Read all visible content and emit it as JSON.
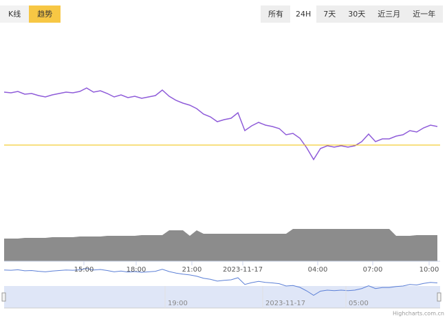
{
  "tabs": [
    "K线",
    "趋势"
  ],
  "ranges": [
    "所有",
    "24H",
    "7天",
    "30天",
    "近三月",
    "近一年"
  ],
  "chart_data": {
    "type": "line",
    "xlim": [
      0,
      63
    ],
    "xticks": [
      {
        "value": 11.6,
        "label": "15:00"
      },
      {
        "value": 19.2,
        "label": "18:00"
      },
      {
        "value": 27.3,
        "label": "21:00"
      },
      {
        "value": 34.7,
        "label": "2023-11-17"
      },
      {
        "value": 45.6,
        "label": "04:00"
      },
      {
        "value": 53.6,
        "label": "07:00"
      },
      {
        "value": 61.8,
        "label": "10:00"
      }
    ],
    "ylim": [
      0,
      160
    ],
    "y2lim": [
      0,
      100
    ],
    "reference_line": {
      "value": 49,
      "color": "#f2c200"
    },
    "series": [
      {
        "color": "#8e5bd9",
        "values": [
          126,
          125,
          127,
          123,
          124,
          121,
          119,
          122,
          124,
          126,
          125,
          127,
          132,
          126,
          128,
          124,
          119,
          122,
          118,
          120,
          117,
          119,
          121,
          129,
          120,
          114,
          110,
          107,
          102,
          94,
          90,
          83,
          86,
          88,
          96,
          70,
          77,
          82,
          78,
          76,
          73,
          64,
          66,
          59,
          45,
          28,
          44,
          48,
          46,
          48,
          46,
          48,
          54,
          65,
          54,
          58,
          58,
          62,
          64,
          70,
          68,
          74,
          78,
          76
        ]
      },
      {
        "axis": "y2",
        "color": "#8c8c8c",
        "values": [
          33,
          33,
          33,
          34,
          34,
          34,
          34,
          35,
          35,
          35,
          35,
          36,
          36,
          36,
          36,
          37,
          37,
          37,
          37,
          37,
          38,
          38,
          38,
          38,
          45,
          45,
          45,
          37,
          45,
          40,
          40,
          40,
          40,
          40,
          40,
          40,
          40,
          40,
          40,
          40,
          40,
          40,
          47,
          47,
          47,
          47,
          47,
          47,
          47,
          47,
          47,
          47,
          47,
          47,
          47,
          47,
          47,
          37,
          37,
          37,
          38,
          38,
          38,
          38
        ]
      }
    ]
  },
  "navigator": {
    "labels": [
      {
        "value": 23.4,
        "label": "19:00"
      },
      {
        "value": 37.6,
        "label": "2023-11-17"
      },
      {
        "value": 49.7,
        "label": "05:00"
      }
    ]
  },
  "credit": "Highcharts.com.cn"
}
